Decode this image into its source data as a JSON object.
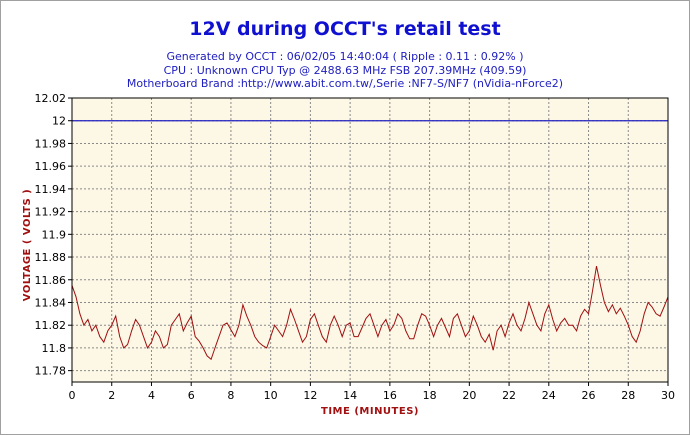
{
  "header": {
    "title": "12V during OCCT's retail test",
    "line1": "Generated by OCCT : 06/02/05 14:40:04 ( Ripple : 0.11 : 0.92% )",
    "line2": "CPU : Unknown CPU Typ @ 2488.63 MHz FSB 207.39MHz (409.59)",
    "line3": "Motherboard Brand :http://www.abit.com.tw/,Serie :NF7-S/NF7 (nVidia-nForce2)"
  },
  "chart_data": {
    "type": "line",
    "title": "12V during OCCT's retail test",
    "xlabel": "TIME (MINUTES)",
    "ylabel": "VOLTAGE ( VOLTS )",
    "xlim": [
      0,
      30
    ],
    "ylim": [
      11.77,
      12.02
    ],
    "x_ticks": [
      0,
      2,
      4,
      6,
      8,
      10,
      12,
      14,
      16,
      18,
      20,
      22,
      24,
      26,
      28,
      30
    ],
    "y_ticks": [
      11.78,
      11.8,
      11.82,
      11.84,
      11.86,
      11.88,
      11.9,
      11.92,
      11.94,
      11.96,
      11.98,
      12,
      12.02
    ],
    "grid": true,
    "reference_line": {
      "y": 12,
      "color": "#2020c0"
    },
    "series_color": "#a01010",
    "background": "#fdf7e6",
    "series": [
      {
        "x": [
          0,
          0.2,
          0.4,
          0.6,
          0.8,
          1.0,
          1.2,
          1.4,
          1.6,
          1.8,
          2.0,
          2.2,
          2.4,
          2.6,
          2.8,
          3.0,
          3.2,
          3.4,
          3.6,
          3.8,
          4.0,
          4.2,
          4.4,
          4.6,
          4.8,
          5.0,
          5.2,
          5.4,
          5.6,
          5.8,
          6.0,
          6.2,
          6.4,
          6.6,
          6.8,
          7.0,
          7.2,
          7.4,
          7.6,
          7.8,
          8.0,
          8.2,
          8.4,
          8.6,
          8.8,
          9.0,
          9.2,
          9.4,
          9.6,
          9.8,
          10.0,
          10.2,
          10.4,
          10.6,
          10.8,
          11.0,
          11.2,
          11.4,
          11.6,
          11.8,
          12.0,
          12.2,
          12.4,
          12.6,
          12.8,
          13.0,
          13.2,
          13.4,
          13.6,
          13.8,
          14.0,
          14.2,
          14.4,
          14.6,
          14.8,
          15.0,
          15.2,
          15.4,
          15.6,
          15.8,
          16.0,
          16.2,
          16.4,
          16.6,
          16.8,
          17.0,
          17.2,
          17.4,
          17.6,
          17.8,
          18.0,
          18.2,
          18.4,
          18.6,
          18.8,
          19.0,
          19.2,
          19.4,
          19.6,
          19.8,
          20.0,
          20.2,
          20.4,
          20.6,
          20.8,
          21.0,
          21.2,
          21.4,
          21.6,
          21.8,
          22.0,
          22.2,
          22.4,
          22.6,
          22.8,
          23.0,
          23.2,
          23.4,
          23.6,
          23.8,
          24.0,
          24.2,
          24.4,
          24.6,
          24.8,
          25.0,
          25.2,
          25.4,
          25.6,
          25.8,
          26.0,
          26.2,
          26.4,
          26.6,
          26.8,
          27.0,
          27.2,
          27.4,
          27.6,
          27.8,
          28.0,
          28.2,
          28.4,
          28.6,
          28.8,
          29.0,
          29.2,
          29.4,
          29.6,
          29.8,
          30.0
        ],
        "y": [
          11.855,
          11.845,
          11.83,
          11.82,
          11.825,
          11.815,
          11.82,
          11.81,
          11.805,
          11.815,
          11.82,
          11.828,
          11.81,
          11.8,
          11.803,
          11.815,
          11.825,
          11.82,
          11.81,
          11.8,
          11.805,
          11.815,
          11.81,
          11.8,
          11.803,
          11.82,
          11.825,
          11.83,
          11.815,
          11.822,
          11.828,
          11.81,
          11.806,
          11.8,
          11.793,
          11.79,
          11.8,
          11.81,
          11.82,
          11.822,
          11.816,
          11.81,
          11.82,
          11.838,
          11.828,
          11.82,
          11.81,
          11.805,
          11.802,
          11.8,
          11.81,
          11.82,
          11.815,
          11.81,
          11.82,
          11.834,
          11.825,
          11.815,
          11.805,
          11.81,
          11.825,
          11.83,
          11.82,
          11.81,
          11.805,
          11.82,
          11.828,
          11.82,
          11.81,
          11.82,
          11.822,
          11.81,
          11.81,
          11.818,
          11.826,
          11.83,
          11.82,
          11.81,
          11.82,
          11.825,
          11.815,
          11.82,
          11.83,
          11.826,
          11.815,
          11.808,
          11.808,
          11.82,
          11.83,
          11.828,
          11.82,
          11.81,
          11.82,
          11.826,
          11.818,
          11.81,
          11.826,
          11.83,
          11.82,
          11.81,
          11.815,
          11.828,
          11.82,
          11.81,
          11.805,
          11.812,
          11.798,
          11.815,
          11.82,
          11.81,
          11.822,
          11.83,
          11.82,
          11.815,
          11.826,
          11.84,
          11.83,
          11.82,
          11.815,
          11.83,
          11.838,
          11.825,
          11.815,
          11.822,
          11.826,
          11.82,
          11.82,
          11.815,
          11.828,
          11.834,
          11.83,
          11.85,
          11.872,
          11.855,
          11.84,
          11.832,
          11.838,
          11.83,
          11.835,
          11.828,
          11.82,
          11.81,
          11.805,
          11.815,
          11.83,
          11.84,
          11.836,
          11.83,
          11.828,
          11.836,
          11.845
        ]
      }
    ]
  }
}
